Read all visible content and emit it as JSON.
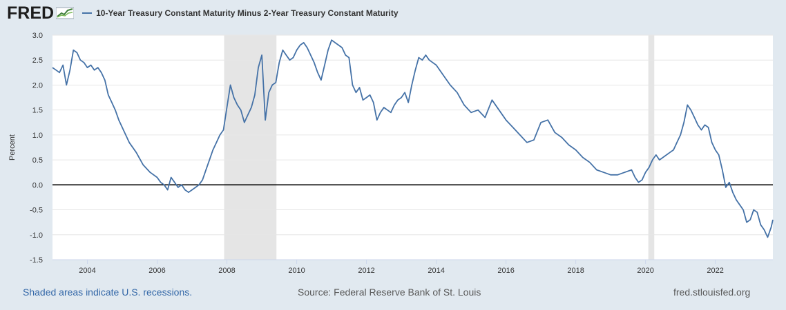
{
  "header": {
    "logo_text": "FRED",
    "logo_icon": "fred-chart-icon"
  },
  "chart_data": {
    "type": "line",
    "legend": "10-Year Treasury Constant Maturity Minus 2-Year Treasury Constant Maturity",
    "legend_placement": "top-left",
    "ylabel": "Percent",
    "xlabel": "",
    "xlim": [
      2003.0,
      2023.65
    ],
    "ylim": [
      -1.5,
      3.0
    ],
    "yticks": [
      "3.0",
      "2.5",
      "2.0",
      "1.5",
      "1.0",
      "0.5",
      "0.0",
      "-0.5",
      "-1.0",
      "-1.5"
    ],
    "ytick_values": [
      3.0,
      2.5,
      2.0,
      1.5,
      1.0,
      0.5,
      0.0,
      -0.5,
      -1.0,
      -1.5
    ],
    "xticks": [
      "2004",
      "2006",
      "2008",
      "2010",
      "2012",
      "2014",
      "2016",
      "2018",
      "2020",
      "2022"
    ],
    "xtick_values": [
      2004,
      2006,
      2008,
      2010,
      2012,
      2014,
      2016,
      2018,
      2020,
      2022
    ],
    "grid": "horizontal",
    "zero_line": true,
    "recessions": [
      [
        2007.92,
        2009.42
      ],
      [
        2020.08,
        2020.25
      ]
    ],
    "colors": {
      "series": "#4572a7",
      "recession": "#e5e5e5",
      "zero": "#000000"
    },
    "series": [
      {
        "x": [
          2003.0,
          2003.1,
          2003.2,
          2003.3,
          2003.4,
          2003.5,
          2003.6,
          2003.7,
          2003.8,
          2003.9,
          2004.0,
          2004.1,
          2004.2,
          2004.3,
          2004.4,
          2004.5,
          2004.6,
          2004.7,
          2004.8,
          2004.9,
          2005.0,
          2005.2,
          2005.4,
          2005.6,
          2005.8,
          2006.0,
          2006.1,
          2006.2,
          2006.3,
          2006.4,
          2006.5,
          2006.6,
          2006.7,
          2006.8,
          2006.9,
          2007.0,
          2007.1,
          2007.2,
          2007.3,
          2007.4,
          2007.5,
          2007.6,
          2007.7,
          2007.8,
          2007.9,
          2008.0,
          2008.1,
          2008.2,
          2008.3,
          2008.4,
          2008.5,
          2008.6,
          2008.7,
          2008.8,
          2008.9,
          2009.0,
          2009.1,
          2009.2,
          2009.3,
          2009.4,
          2009.5,
          2009.6,
          2009.7,
          2009.8,
          2009.9,
          2010.0,
          2010.1,
          2010.2,
          2010.3,
          2010.4,
          2010.5,
          2010.6,
          2010.7,
          2010.8,
          2010.9,
          2011.0,
          2011.1,
          2011.2,
          2011.3,
          2011.4,
          2011.5,
          2011.6,
          2011.7,
          2011.8,
          2011.9,
          2012.0,
          2012.1,
          2012.2,
          2012.3,
          2012.4,
          2012.5,
          2012.6,
          2012.7,
          2012.8,
          2012.9,
          2013.0,
          2013.1,
          2013.2,
          2013.3,
          2013.4,
          2013.5,
          2013.6,
          2013.7,
          2013.8,
          2013.9,
          2014.0,
          2014.2,
          2014.4,
          2014.6,
          2014.8,
          2015.0,
          2015.2,
          2015.4,
          2015.6,
          2015.8,
          2016.0,
          2016.2,
          2016.4,
          2016.6,
          2016.8,
          2017.0,
          2017.2,
          2017.4,
          2017.6,
          2017.8,
          2018.0,
          2018.2,
          2018.4,
          2018.6,
          2018.8,
          2019.0,
          2019.2,
          2019.4,
          2019.6,
          2019.7,
          2019.8,
          2019.9,
          2020.0,
          2020.1,
          2020.2,
          2020.3,
          2020.4,
          2020.5,
          2020.6,
          2020.7,
          2020.8,
          2020.9,
          2021.0,
          2021.1,
          2021.2,
          2021.3,
          2021.4,
          2021.5,
          2021.6,
          2021.7,
          2021.8,
          2021.9,
          2022.0,
          2022.1,
          2022.2,
          2022.3,
          2022.4,
          2022.5,
          2022.6,
          2022.7,
          2022.8,
          2022.9,
          2023.0,
          2023.1,
          2023.2,
          2023.3,
          2023.4,
          2023.5,
          2023.6,
          2023.65
        ],
        "y": [
          2.35,
          2.3,
          2.25,
          2.4,
          2.0,
          2.3,
          2.7,
          2.65,
          2.5,
          2.45,
          2.35,
          2.4,
          2.3,
          2.35,
          2.25,
          2.1,
          1.8,
          1.65,
          1.5,
          1.3,
          1.15,
          0.85,
          0.65,
          0.4,
          0.25,
          0.15,
          0.05,
          0.0,
          -0.1,
          0.15,
          0.05,
          -0.05,
          0.0,
          -0.1,
          -0.15,
          -0.1,
          -0.05,
          0.0,
          0.1,
          0.3,
          0.5,
          0.7,
          0.85,
          1.0,
          1.1,
          1.55,
          2.0,
          1.75,
          1.6,
          1.5,
          1.25,
          1.4,
          1.55,
          1.8,
          2.35,
          2.6,
          1.3,
          1.85,
          2.0,
          2.05,
          2.45,
          2.7,
          2.6,
          2.5,
          2.55,
          2.7,
          2.8,
          2.85,
          2.75,
          2.6,
          2.45,
          2.25,
          2.1,
          2.4,
          2.7,
          2.9,
          2.85,
          2.8,
          2.75,
          2.6,
          2.55,
          2.0,
          1.85,
          1.95,
          1.7,
          1.75,
          1.8,
          1.65,
          1.3,
          1.45,
          1.55,
          1.5,
          1.45,
          1.6,
          1.7,
          1.75,
          1.85,
          1.65,
          2.0,
          2.3,
          2.55,
          2.5,
          2.6,
          2.5,
          2.45,
          2.4,
          2.2,
          2.0,
          1.85,
          1.6,
          1.45,
          1.5,
          1.35,
          1.7,
          1.5,
          1.3,
          1.15,
          1.0,
          0.85,
          0.9,
          1.25,
          1.3,
          1.05,
          0.95,
          0.8,
          0.7,
          0.55,
          0.45,
          0.3,
          0.25,
          0.2,
          0.2,
          0.25,
          0.3,
          0.15,
          0.05,
          0.1,
          0.25,
          0.35,
          0.5,
          0.6,
          0.5,
          0.55,
          0.6,
          0.65,
          0.7,
          0.85,
          1.0,
          1.25,
          1.6,
          1.5,
          1.35,
          1.2,
          1.1,
          1.2,
          1.15,
          0.85,
          0.7,
          0.6,
          0.3,
          -0.05,
          0.05,
          -0.15,
          -0.3,
          -0.4,
          -0.5,
          -0.75,
          -0.7,
          -0.5,
          -0.55,
          -0.8,
          -0.9,
          -1.05,
          -0.85,
          -0.7
        ]
      }
    ]
  },
  "footer": {
    "recession_note": "Shaded areas indicate U.S. recessions.",
    "source": "Source: Federal Reserve Bank of St. Louis",
    "site": "fred.stlouisfed.org"
  }
}
